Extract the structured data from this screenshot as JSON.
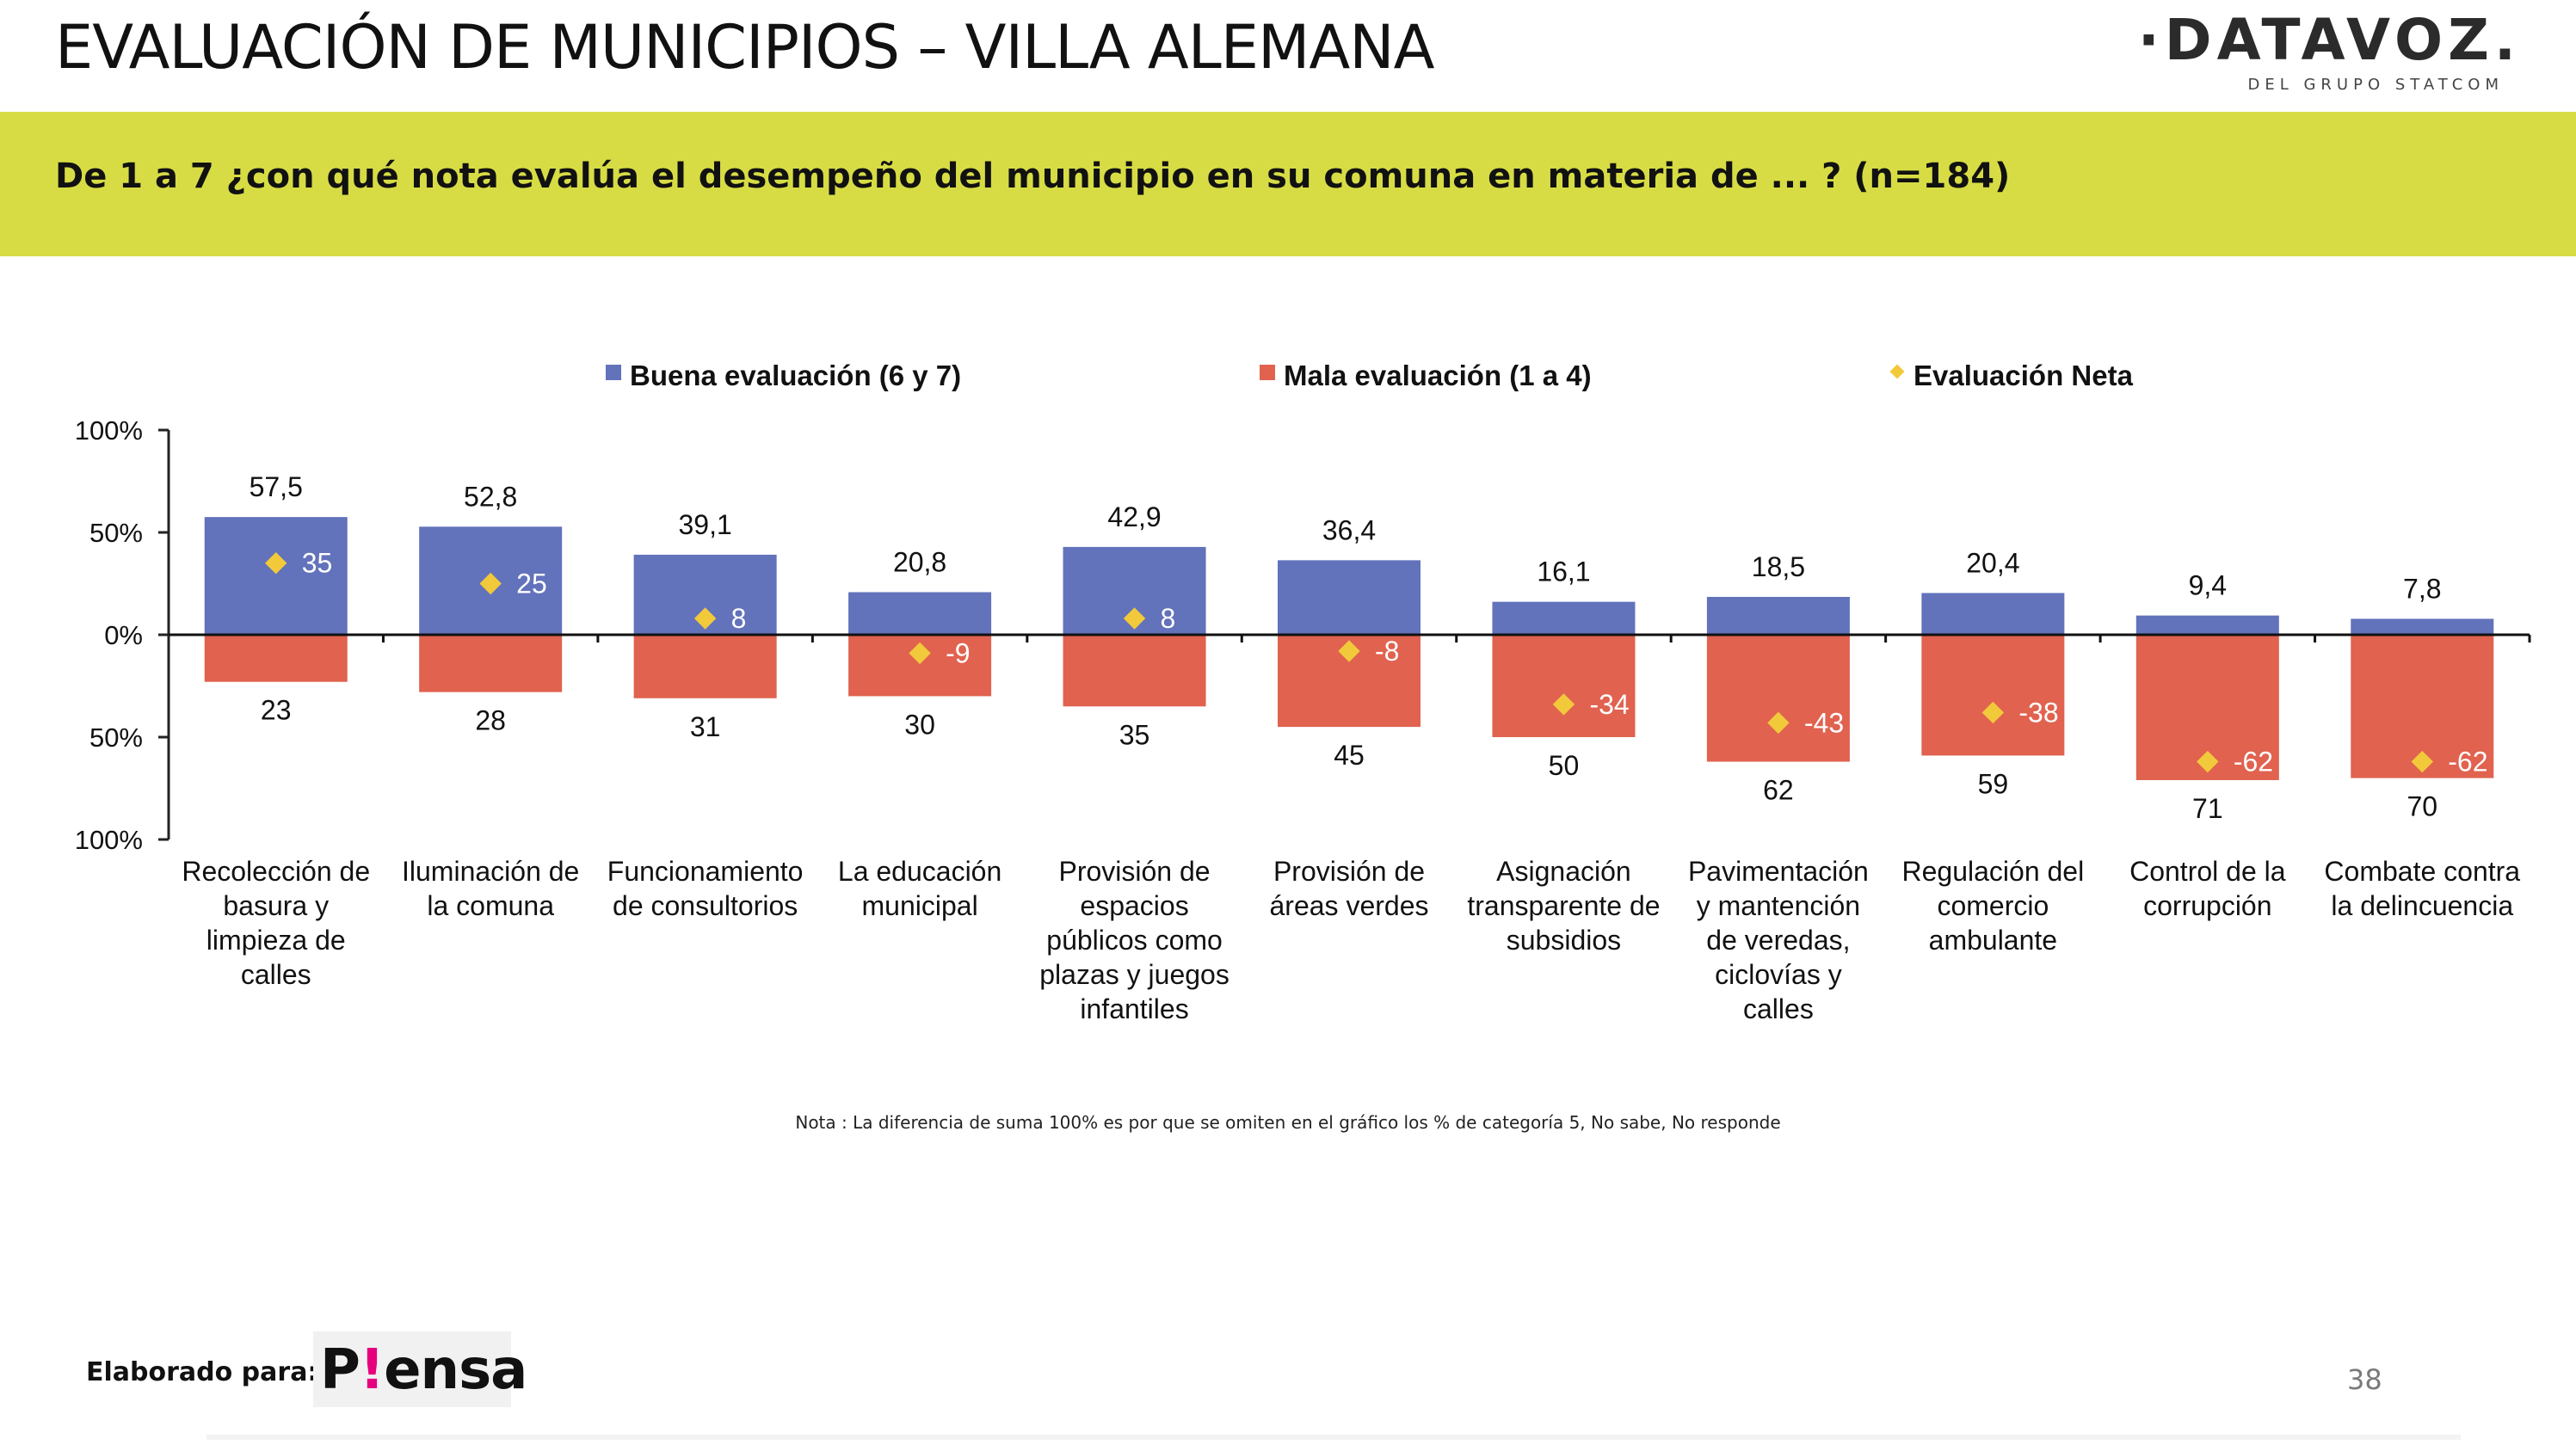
{
  "header": {
    "title": "EVALUACIÓN DE MUNICIPIOS – VILLA ALEMANA",
    "logo_main": "·DATAVOZ.",
    "logo_sub": "DEL GRUPO STATCOM"
  },
  "banner": {
    "question": "De 1 a 7 ¿con qué nota evalúa el desempeño del municipio en su comuna en materia de ... ? (n=184)"
  },
  "colors": {
    "good": "#6272bb",
    "bad": "#e0624f",
    "net": "#f2c93b",
    "banner": "#d7dc45"
  },
  "chart_data": {
    "type": "bar",
    "subtype": "diverging stacked bar with net markers",
    "categories": [
      [
        "Recolección de",
        "basura y",
        "limpieza de",
        "calles"
      ],
      [
        "Iluminación de",
        "la comuna"
      ],
      [
        "Funcionamiento",
        "de consultorios"
      ],
      [
        "La educación",
        "municipal"
      ],
      [
        "Provisión de",
        "espacios",
        "públicos como",
        "plazas y juegos",
        "infantiles"
      ],
      [
        "Provisión de",
        "áreas verdes"
      ],
      [
        "Asignación",
        "transparente de",
        "subsidios"
      ],
      [
        "Pavimentación",
        "y mantención",
        "de veredas,",
        "ciclovías y",
        "calles"
      ],
      [
        "Regulación del",
        "comercio",
        "ambulante"
      ],
      [
        "Control de la",
        "corrupción"
      ],
      [
        "Combate contra",
        "la delincuencia"
      ]
    ],
    "series": [
      {
        "name": "Buena evaluación (6 y 7)",
        "values": [
          57.5,
          52.8,
          39.1,
          20.8,
          42.9,
          36.4,
          16.1,
          18.5,
          20.4,
          9.4,
          7.8
        ],
        "labels": [
          "57,5",
          "52,8",
          "39,1",
          "20,8",
          "42,9",
          "36,4",
          "16,1",
          "18,5",
          "20,4",
          "9,4",
          "7,8"
        ]
      },
      {
        "name": "Mala evaluación (1 a 4)",
        "values": [
          23,
          28,
          31,
          30,
          35,
          45,
          50,
          62,
          59,
          71,
          70
        ],
        "labels": [
          "23",
          "28",
          "31",
          "30",
          "35",
          "45",
          "50",
          "62",
          "59",
          "71",
          "70"
        ]
      },
      {
        "name": "Evaluación Neta",
        "values": [
          35,
          25,
          8,
          -9,
          8,
          -8,
          -34,
          -43,
          -38,
          -62,
          -62
        ],
        "labels": [
          "35",
          "25",
          "8",
          "-9",
          "8",
          "-8",
          "-34",
          "-43",
          "-38",
          "-62",
          "-62"
        ]
      }
    ],
    "y_ticks": [
      "100%",
      "50%",
      "0%",
      "50%",
      "100%"
    ],
    "ylim": [
      -100,
      100
    ],
    "grid": false,
    "legend_position": "top"
  },
  "note": "Nota : La diferencia de suma 100% es por que se omiten en el gráfico los % de categoría 5, No sabe, No responde",
  "footer": {
    "label": "Elaborado para:",
    "brand_p": "P",
    "brand_accent": "!",
    "brand_rest": "ensa",
    "page_number": "38"
  }
}
